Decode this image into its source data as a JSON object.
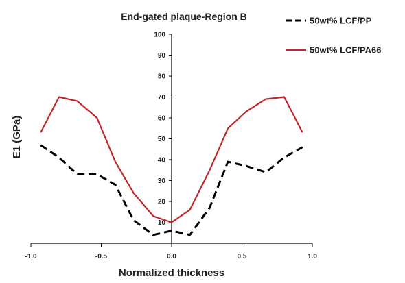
{
  "chart_data": {
    "type": "line",
    "title": "End-gated plaque-Region B",
    "xlabel": "Normalized thickness",
    "ylabel": "E1 (GPa)",
    "xlim": [
      -1.0,
      1.0
    ],
    "ylim": [
      0,
      100
    ],
    "x_ticks": [
      "-1.0",
      "-0.5",
      "0.0",
      "0.5",
      "1.0"
    ],
    "y_ticks": [
      "10",
      "20",
      "30",
      "40",
      "50",
      "60",
      "70",
      "80",
      "90",
      "100"
    ],
    "grid": false,
    "legend_position": "top-right",
    "series": [
      {
        "name": "50wt% LCF/PP",
        "color": "#000000",
        "dash": "dashed",
        "x": [
          -0.93,
          -0.8,
          -0.67,
          -0.53,
          -0.4,
          -0.27,
          -0.13,
          0.0,
          0.13,
          0.27,
          0.4,
          0.53,
          0.67,
          0.8,
          0.93
        ],
        "y": [
          47,
          41,
          33,
          33,
          28,
          11,
          4,
          6,
          4,
          17,
          39,
          37,
          34,
          41,
          46
        ]
      },
      {
        "name": "50wt% LCF/PA66",
        "color": "#c0272d",
        "dash": "solid",
        "x": [
          -0.93,
          -0.8,
          -0.67,
          -0.53,
          -0.4,
          -0.27,
          -0.13,
          0.0,
          0.13,
          0.27,
          0.4,
          0.53,
          0.67,
          0.8,
          0.93
        ],
        "y": [
          53,
          70,
          68,
          60,
          39,
          24,
          13,
          10,
          16,
          35,
          55,
          63,
          69,
          70,
          53
        ]
      }
    ]
  }
}
